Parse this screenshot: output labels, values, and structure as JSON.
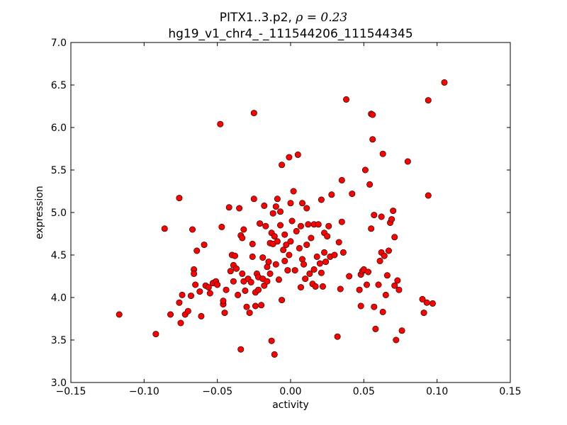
{
  "chart_data": {
    "type": "scatter",
    "title_prefix": "PITX1..3.p2, ",
    "title_rho": "ρ = 0.23",
    "subtitle": "hg19_v1_chr4_-_111544206_111544345",
    "xlabel": "activity",
    "ylabel": "expression",
    "xlim": [
      -0.15,
      0.15
    ],
    "ylim": [
      3.0,
      7.0
    ],
    "xticks": [
      {
        "value": -0.15,
        "label": "−0.15"
      },
      {
        "value": -0.1,
        "label": "−0.10"
      },
      {
        "value": -0.05,
        "label": "−0.05"
      },
      {
        "value": 0.0,
        "label": "0.00"
      },
      {
        "value": 0.05,
        "label": "0.05"
      },
      {
        "value": 0.1,
        "label": "0.10"
      },
      {
        "value": 0.15,
        "label": "0.15"
      }
    ],
    "yticks": [
      {
        "value": 3.0,
        "label": "3.0"
      },
      {
        "value": 3.5,
        "label": "3.5"
      },
      {
        "value": 4.0,
        "label": "4.0"
      },
      {
        "value": 4.5,
        "label": "4.5"
      },
      {
        "value": 5.0,
        "label": "5.0"
      },
      {
        "value": 5.5,
        "label": "5.5"
      },
      {
        "value": 6.0,
        "label": "6.0"
      },
      {
        "value": 6.5,
        "label": "6.5"
      },
      {
        "value": 7.0,
        "label": "7.0"
      }
    ],
    "grid": false,
    "legend": "none",
    "marker_color": "#ff0000",
    "marker_edge_color": "#000000",
    "points": [
      [
        -0.117,
        3.8
      ],
      [
        -0.092,
        3.57
      ],
      [
        -0.086,
        4.81
      ],
      [
        -0.082,
        3.8
      ],
      [
        -0.076,
        5.17
      ],
      [
        -0.076,
        3.94
      ],
      [
        -0.075,
        3.7
      ],
      [
        -0.074,
        4.03
      ],
      [
        -0.072,
        3.8
      ],
      [
        -0.07,
        3.84
      ],
      [
        -0.068,
        4.02
      ],
      [
        -0.067,
        4.8
      ],
      [
        -0.066,
        4.33
      ],
      [
        -0.066,
        4.28
      ],
      [
        -0.065,
        4.15
      ],
      [
        -0.064,
        4.55
      ],
      [
        -0.062,
        4.07
      ],
      [
        -0.061,
        3.78
      ],
      [
        -0.059,
        4.62
      ],
      [
        -0.058,
        4.14
      ],
      [
        -0.056,
        4.12
      ],
      [
        -0.055,
        4.05
      ],
      [
        -0.053,
        4.17
      ],
      [
        -0.051,
        4.19
      ],
      [
        -0.05,
        4.15
      ],
      [
        -0.048,
        6.04
      ],
      [
        -0.047,
        4.83
      ],
      [
        -0.046,
        3.92
      ],
      [
        -0.046,
        3.96
      ],
      [
        -0.045,
        3.82
      ],
      [
        -0.044,
        4.09
      ],
      [
        -0.042,
        5.06
      ],
      [
        -0.041,
        4.31
      ],
      [
        -0.04,
        4.5
      ],
      [
        -0.039,
        4.38
      ],
      [
        -0.039,
        4.19
      ],
      [
        -0.038,
        4.49
      ],
      [
        -0.037,
        4.34
      ],
      [
        -0.036,
        4.03
      ],
      [
        -0.035,
        5.05
      ],
      [
        -0.034,
        3.39
      ],
      [
        -0.034,
        4.73
      ],
      [
        -0.033,
        4.28
      ],
      [
        -0.033,
        4.7
      ],
      [
        -0.032,
        4.8
      ],
      [
        -0.032,
        4.19
      ],
      [
        -0.031,
        4.08
      ],
      [
        -0.03,
        3.89
      ],
      [
        -0.029,
        4.22
      ],
      [
        -0.028,
        3.82
      ],
      [
        -0.027,
        4.18
      ],
      [
        -0.026,
        4.63
      ],
      [
        -0.026,
        4.48
      ],
      [
        -0.025,
        6.17
      ],
      [
        -0.025,
        5.16
      ],
      [
        -0.024,
        3.9
      ],
      [
        -0.024,
        4.06
      ],
      [
        -0.023,
        4.28
      ],
      [
        -0.022,
        4.24
      ],
      [
        -0.022,
        4.09
      ],
      [
        -0.021,
        4.87
      ],
      [
        -0.02,
        3.91
      ],
      [
        -0.019,
        4.47
      ],
      [
        -0.019,
        4.22
      ],
      [
        -0.018,
        5.08
      ],
      [
        -0.018,
        4.14
      ],
      [
        -0.017,
        4.84
      ],
      [
        -0.016,
        4.36
      ],
      [
        -0.016,
        4.19
      ],
      [
        -0.015,
        4.42
      ],
      [
        -0.014,
        4.64
      ],
      [
        -0.014,
        4.28
      ],
      [
        -0.013,
        3.49
      ],
      [
        -0.013,
        4.76
      ],
      [
        -0.012,
        4.99
      ],
      [
        -0.012,
        4.63
      ],
      [
        -0.011,
        3.33
      ],
      [
        -0.011,
        4.72
      ],
      [
        -0.01,
        5.07
      ],
      [
        -0.01,
        4.39
      ],
      [
        -0.009,
        5.16
      ],
      [
        -0.009,
        4.66
      ],
      [
        -0.008,
        4.21
      ],
      [
        -0.007,
        4.85
      ],
      [
        -0.007,
        5.01
      ],
      [
        -0.006,
        5.56
      ],
      [
        -0.006,
        3.97
      ],
      [
        -0.005,
        4.56
      ],
      [
        -0.004,
        4.74
      ],
      [
        -0.004,
        4.43
      ],
      [
        -0.003,
        4.62
      ],
      [
        -0.002,
        4.32
      ],
      [
        -0.001,
        5.65
      ],
      [
        -0.001,
        4.5
      ],
      [
        0.0,
        5.11
      ],
      [
        0.0,
        4.66
      ],
      [
        0.001,
        4.9
      ],
      [
        0.002,
        5.25
      ],
      [
        0.003,
        4.32
      ],
      [
        0.004,
        4.78
      ],
      [
        0.005,
        5.68
      ],
      [
        0.006,
        4.58
      ],
      [
        0.007,
        4.12
      ],
      [
        0.007,
        4.84
      ],
      [
        0.008,
        4.45
      ],
      [
        0.008,
        5.11
      ],
      [
        0.009,
        4.39
      ],
      [
        0.01,
        4.22
      ],
      [
        0.011,
        4.62
      ],
      [
        0.011,
        5.05
      ],
      [
        0.012,
        4.86
      ],
      [
        0.013,
        4.28
      ],
      [
        0.014,
        4.7
      ],
      [
        0.015,
        4.16
      ],
      [
        0.016,
        4.86
      ],
      [
        0.016,
        4.33
      ],
      [
        0.017,
        4.13
      ],
      [
        0.018,
        4.48
      ],
      [
        0.019,
        4.86
      ],
      [
        0.02,
        4.4
      ],
      [
        0.021,
        4.29
      ],
      [
        0.021,
        5.15
      ],
      [
        0.022,
        4.13
      ],
      [
        0.023,
        4.53
      ],
      [
        0.023,
        4.76
      ],
      [
        0.024,
        4.42
      ],
      [
        0.025,
        4.72
      ],
      [
        0.026,
        4.84
      ],
      [
        0.027,
        4.48
      ],
      [
        0.028,
        5.21
      ],
      [
        0.03,
        4.5
      ],
      [
        0.032,
        3.54
      ],
      [
        0.033,
        4.65
      ],
      [
        0.034,
        4.1
      ],
      [
        0.035,
        4.89
      ],
      [
        0.035,
        5.38
      ],
      [
        0.036,
        4.53
      ],
      [
        0.038,
        6.33
      ],
      [
        0.04,
        4.25
      ],
      [
        0.042,
        5.22
      ],
      [
        0.047,
        4.09
      ],
      [
        0.048,
        3.9
      ],
      [
        0.048,
        4.27
      ],
      [
        0.049,
        4.31
      ],
      [
        0.05,
        4.33
      ],
      [
        0.051,
        5.5
      ],
      [
        0.052,
        4.15
      ],
      [
        0.053,
        4.3
      ],
      [
        0.054,
        5.33
      ],
      [
        0.055,
        4.81
      ],
      [
        0.055,
        6.16
      ],
      [
        0.056,
        6.15
      ],
      [
        0.056,
        5.86
      ],
      [
        0.057,
        4.97
      ],
      [
        0.057,
        3.89
      ],
      [
        0.058,
        3.63
      ],
      [
        0.06,
        4.15
      ],
      [
        0.061,
        4.43
      ],
      [
        0.062,
        4.95
      ],
      [
        0.062,
        4.53
      ],
      [
        0.063,
        3.83
      ],
      [
        0.063,
        5.69
      ],
      [
        0.064,
        4.49
      ],
      [
        0.065,
        4.03
      ],
      [
        0.066,
        4.26
      ],
      [
        0.067,
        4.55
      ],
      [
        0.068,
        4.88
      ],
      [
        0.069,
        4.92
      ],
      [
        0.07,
        5.02
      ],
      [
        0.071,
        4.71
      ],
      [
        0.071,
        4.14
      ],
      [
        0.072,
        3.5
      ],
      [
        0.073,
        4.2
      ],
      [
        0.074,
        4.09
      ],
      [
        0.076,
        3.61
      ],
      [
        0.08,
        5.6
      ],
      [
        0.09,
        3.98
      ],
      [
        0.091,
        3.82
      ],
      [
        0.093,
        3.94
      ],
      [
        0.094,
        5.2
      ],
      [
        0.094,
        6.32
      ],
      [
        0.097,
        3.93
      ],
      [
        0.105,
        6.53
      ]
    ]
  }
}
